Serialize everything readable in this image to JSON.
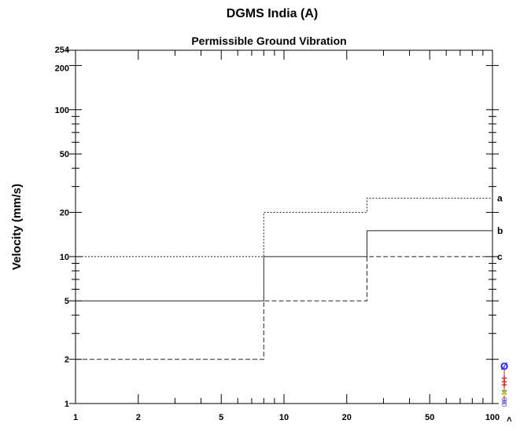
{
  "chart_data": {
    "type": "line",
    "title": "DGMS India (A)",
    "subtitle": "Permissible Ground Vibration",
    "ylabel": "Velocity (mm/s)",
    "xlabel": "",
    "x_scale": "log",
    "y_scale": "log",
    "xlim": [
      1,
      100
    ],
    "ylim": [
      1,
      254
    ],
    "x_ticks": [
      1,
      2,
      5,
      10,
      20,
      50,
      100
    ],
    "x_tick_labels": [
      "1",
      "2",
      "5",
      "10",
      "20",
      "50",
      "100"
    ],
    "y_ticks": [
      1,
      2,
      5,
      10,
      20,
      50,
      100,
      200,
      254
    ],
    "y_tick_labels": [
      "1",
      "2",
      "5",
      "10",
      "20",
      "50",
      "100",
      "200",
      "254"
    ],
    "x_axis_end_label": ">",
    "grid": false,
    "series": [
      {
        "name": "a",
        "line_style": "dotted",
        "x": [
          1,
          8,
          8,
          25,
          25,
          100
        ],
        "y": [
          10,
          10,
          20,
          20,
          25,
          25
        ]
      },
      {
        "name": "b",
        "line_style": "solid",
        "x": [
          1,
          8,
          8,
          25,
          25,
          100
        ],
        "y": [
          5,
          5,
          10,
          10,
          15,
          15
        ]
      },
      {
        "name": "c",
        "line_style": "dashed",
        "x": [
          1,
          8,
          8,
          25,
          25,
          100
        ],
        "y": [
          2,
          2,
          5,
          5,
          10,
          10
        ]
      }
    ],
    "markers": [
      {
        "symbol": "Ø",
        "color": "#1a1aff",
        "y": 1.8
      },
      {
        "symbol": "+",
        "color": "#e02020",
        "y": 1.5
      },
      {
        "symbol": "+",
        "color": "#e02020",
        "y": 1.42
      },
      {
        "symbol": "+",
        "color": "#e02020",
        "y": 1.35
      },
      {
        "symbol": "×",
        "color": "#20a020",
        "y": 1.2
      },
      {
        "symbol": "+",
        "color": "#e0c020",
        "y": 1.18
      },
      {
        "symbol": "○",
        "color": "#1a1aff",
        "y": 1.08
      },
      {
        "symbol": "○",
        "color": "#1a1aff",
        "y": 1.04
      },
      {
        "symbol": "○",
        "color": "#1a1aff",
        "y": 1.0
      }
    ]
  }
}
